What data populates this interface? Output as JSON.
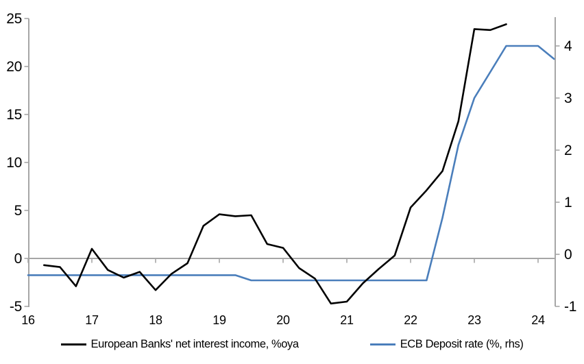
{
  "chart_data": {
    "type": "line",
    "title": "",
    "x_axis": {
      "tick_labels": [
        "16",
        "17",
        "18",
        "19",
        "20",
        "21",
        "22",
        "23",
        "24"
      ],
      "tick_values": [
        16,
        17,
        18,
        19,
        20,
        21,
        22,
        23,
        24
      ],
      "range": [
        16,
        24.3
      ]
    },
    "left_axis": {
      "tick_labels": [
        "25",
        "20",
        "15",
        "10",
        "5",
        "0",
        "-5"
      ],
      "tick_values": [
        25,
        20,
        15,
        10,
        5,
        0,
        -5
      ],
      "range": [
        -5.2,
        25.1
      ]
    },
    "right_axis": {
      "tick_labels": [
        "4",
        "3",
        "2",
        "1",
        "0",
        "-1"
      ],
      "tick_values": [
        4,
        3,
        2,
        1,
        0,
        -1
      ],
      "range": [
        -1.05,
        4.55
      ]
    },
    "grid": "zero-line-only",
    "legend_position": "bottom-center",
    "series": [
      {
        "name": "European Banks' net interest income, %oya",
        "axis": "left",
        "color": "#000000",
        "x": [
          16.25,
          16.5,
          16.75,
          17,
          17.25,
          17.5,
          17.75,
          18,
          18.25,
          18.5,
          18.75,
          19,
          19.25,
          19.5,
          19.75,
          20,
          20.25,
          20.5,
          20.75,
          21,
          21.25,
          21.5,
          21.75,
          22,
          22.25,
          22.5,
          22.75,
          23,
          23.25,
          23.5
        ],
        "values": [
          -0.7,
          -0.9,
          -2.9,
          1.0,
          -1.2,
          -2.0,
          -1.4,
          -3.3,
          -1.6,
          -0.5,
          3.4,
          4.6,
          4.4,
          4.5,
          1.5,
          1.1,
          -1.0,
          -2.1,
          -4.7,
          -4.5,
          -2.6,
          -1.1,
          0.3,
          5.3,
          7.1,
          9.1,
          14.3,
          23.9,
          23.8,
          24.4
        ]
      },
      {
        "name": "ECB Deposit rate (%, rhs)",
        "axis": "right",
        "color": "#4A7EBB",
        "x": [
          16,
          16.25,
          16.5,
          16.75,
          17,
          17.25,
          17.5,
          17.75,
          18,
          18.25,
          18.5,
          18.75,
          19,
          19.25,
          19.5,
          19.75,
          20,
          20.25,
          20.5,
          20.75,
          21,
          21.25,
          21.5,
          21.75,
          22,
          22.25,
          22.5,
          22.75,
          23,
          23.25,
          23.5,
          23.75,
          24,
          24.25
        ],
        "values": [
          -0.4,
          -0.4,
          -0.4,
          -0.4,
          -0.4,
          -0.4,
          -0.4,
          -0.4,
          -0.4,
          -0.4,
          -0.4,
          -0.4,
          -0.4,
          -0.4,
          -0.5,
          -0.5,
          -0.5,
          -0.5,
          -0.5,
          -0.5,
          -0.5,
          -0.5,
          -0.5,
          -0.5,
          -0.5,
          -0.5,
          0.7,
          2.1,
          3.0,
          3.5,
          4.0,
          4.0,
          4.0,
          3.75
        ]
      }
    ]
  },
  "colors": {
    "axis": "#A6A6A6",
    "text": "#000000",
    "background": "#FFFFFF"
  }
}
